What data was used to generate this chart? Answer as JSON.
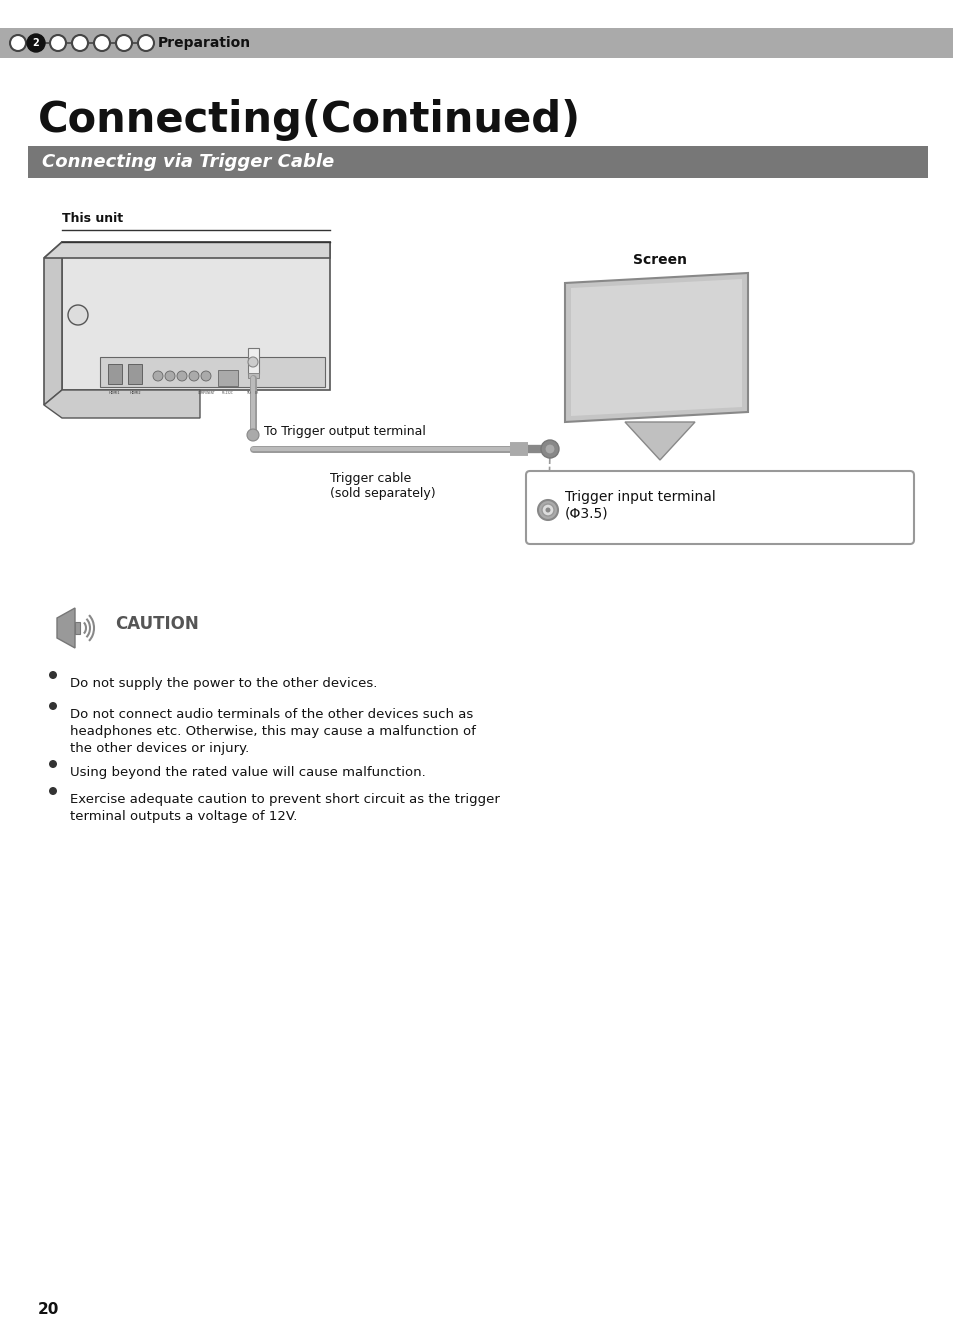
{
  "page_bg": "#ffffff",
  "header_bg": "#aaaaaa",
  "header_text": "Preparation",
  "section_bg": "#777777",
  "section_text": "Connecting via Trigger Cable",
  "main_title": "Connecting(Continued)",
  "this_unit_label": "This unit",
  "screen_label": "Screen",
  "trigger_output_label": "To Trigger output terminal",
  "trigger_cable_label": "Trigger cable\n(sold separately)",
  "trigger_input_label": "Trigger input terminal\n(Φ3.5)",
  "caution_title": "CAUTION",
  "bullet_points": [
    "Do not supply the power to the other devices.",
    "Do not connect audio terminals of the other devices such as\nheadphones etc. Otherwise, this may cause a malfunction of\nthe other devices or injury.",
    "Using beyond the rated value will cause malfunction.",
    "Exercise adequate caution to prevent short circuit as the trigger\nterminal outputs a voltage of 12V."
  ],
  "page_number": "20"
}
